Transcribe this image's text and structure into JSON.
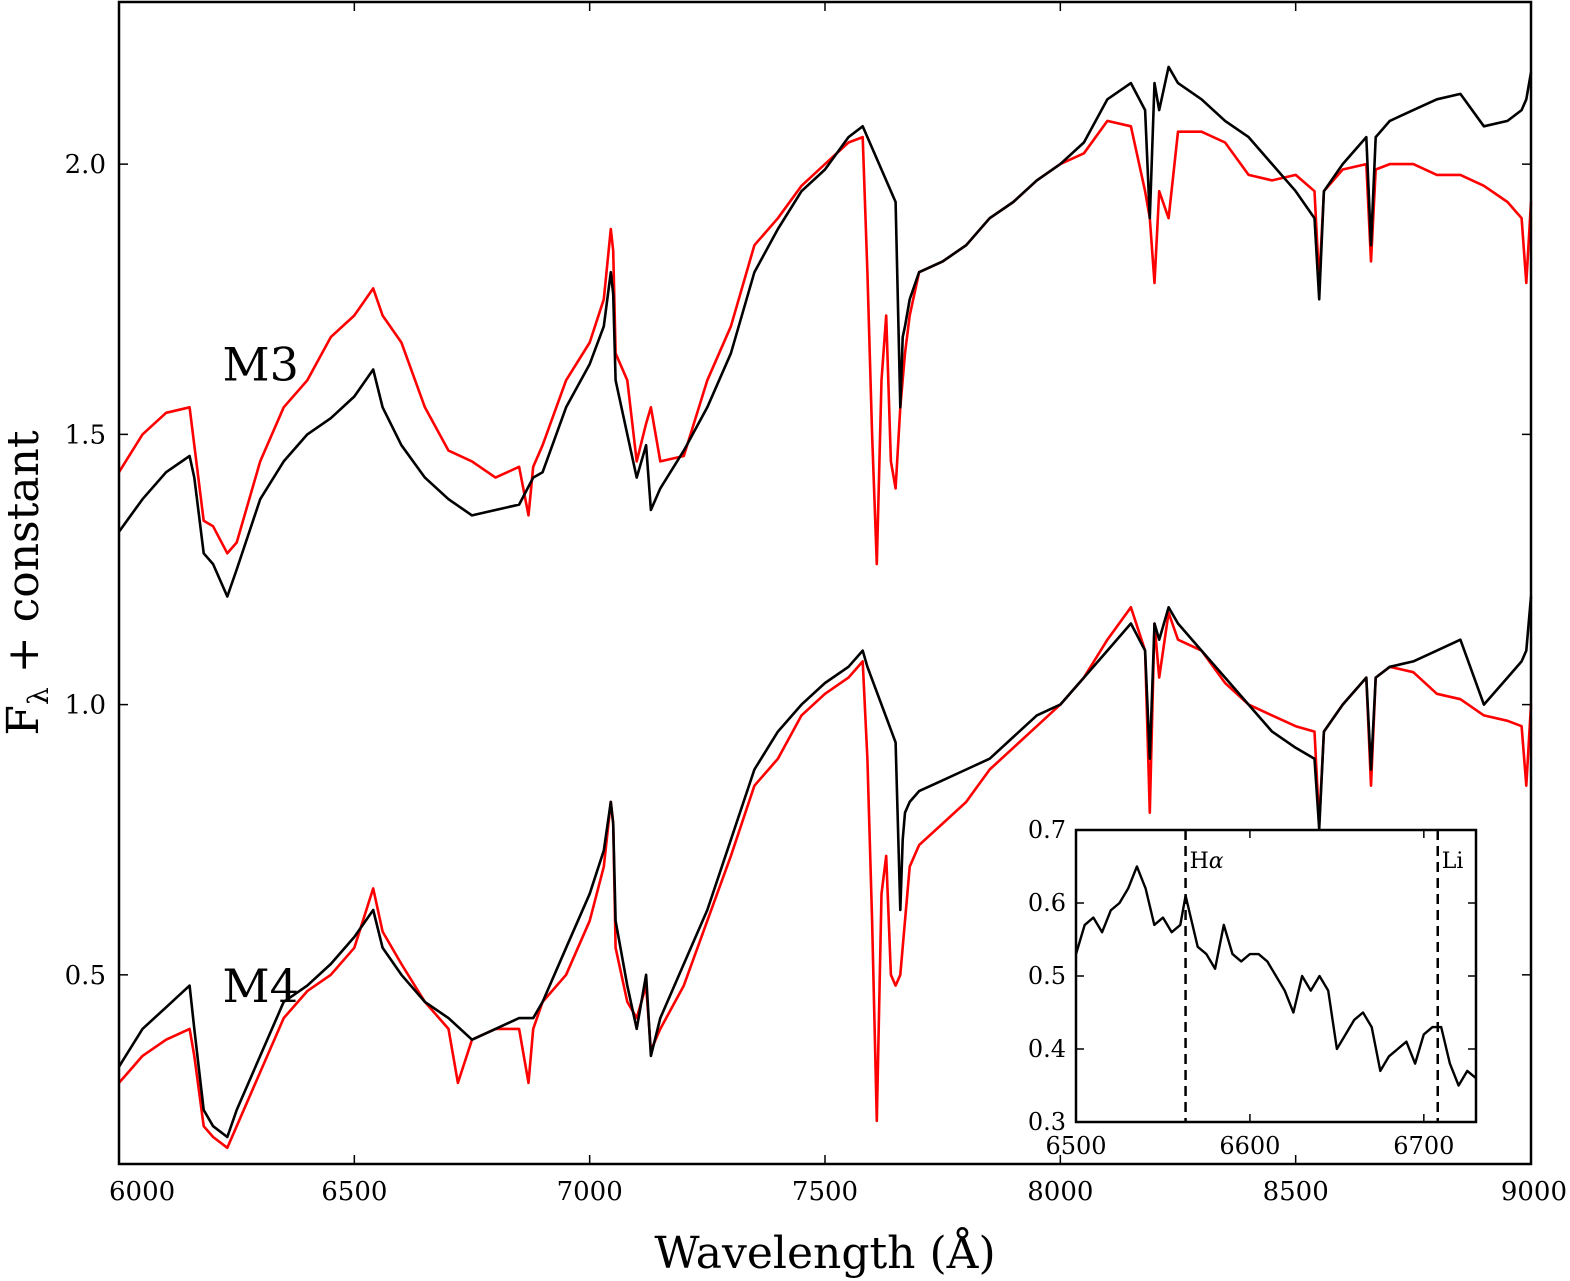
{
  "chart_data": [
    {
      "type": "line",
      "title": "",
      "xlabel": "Wavelength (Å)",
      "ylabel": "F_λ + constant",
      "ylabel_parts": {
        "main": "F",
        "sub": "λ",
        "rest": " + constant"
      },
      "xlim": [
        6000,
        9000
      ],
      "ylim": [
        0.15,
        2.3
      ],
      "xticks": [
        6000,
        6500,
        7000,
        7500,
        8000,
        8500,
        9000
      ],
      "yticks": [
        0.5,
        1.0,
        1.5,
        2.0
      ],
      "xtick_labels": [
        "6000",
        "6500",
        "7000",
        "7500",
        "8000",
        "8500",
        "9000"
      ],
      "ytick_labels": [
        "0.5",
        "1.0",
        "1.5",
        "2.0"
      ],
      "grid": false,
      "annotations": [
        {
          "text": "M3",
          "x": 6220,
          "y": 1.6,
          "color": "#ff0000"
        },
        {
          "text": "M4",
          "x": 6220,
          "y": 0.45,
          "color": "#ff0000"
        }
      ],
      "series": [
        {
          "color": "#ff0000",
          "group": "M3",
          "x": [
            6000,
            6050,
            6100,
            6150,
            6160,
            6180,
            6200,
            6230,
            6250,
            6300,
            6350,
            6400,
            6450,
            6500,
            6540,
            6560,
            6600,
            6650,
            6700,
            6750,
            6800,
            6850,
            6870,
            6880,
            6900,
            6950,
            7000,
            7030,
            7045,
            7050,
            7055,
            7080,
            7100,
            7120,
            7130,
            7150,
            7200,
            7250,
            7300,
            7350,
            7400,
            7450,
            7500,
            7550,
            7580,
            7590,
            7600,
            7610,
            7620,
            7630,
            7640,
            7650,
            7660,
            7670,
            7680,
            7700,
            7750,
            7800,
            7850,
            7900,
            7950,
            8000,
            8050,
            8100,
            8150,
            8180,
            8190,
            8200,
            8210,
            8230,
            8250,
            8300,
            8350,
            8400,
            8450,
            8500,
            8540,
            8550,
            8560,
            8600,
            8650,
            8660,
            8670,
            8700,
            8750,
            8800,
            8850,
            8900,
            8950,
            8980,
            8990,
            9000
          ],
          "y": [
            1.43,
            1.5,
            1.54,
            1.55,
            1.48,
            1.34,
            1.33,
            1.28,
            1.3,
            1.45,
            1.55,
            1.6,
            1.68,
            1.72,
            1.77,
            1.72,
            1.67,
            1.55,
            1.47,
            1.45,
            1.42,
            1.44,
            1.35,
            1.44,
            1.48,
            1.6,
            1.67,
            1.75,
            1.88,
            1.84,
            1.65,
            1.6,
            1.45,
            1.52,
            1.55,
            1.45,
            1.46,
            1.6,
            1.7,
            1.85,
            1.9,
            1.96,
            2.0,
            2.04,
            2.05,
            1.8,
            1.5,
            1.26,
            1.6,
            1.72,
            1.45,
            1.4,
            1.55,
            1.65,
            1.72,
            1.8,
            1.82,
            1.85,
            1.9,
            1.93,
            1.97,
            2.0,
            2.02,
            2.08,
            2.07,
            1.95,
            1.9,
            1.78,
            1.95,
            1.9,
            2.06,
            2.06,
            2.04,
            1.98,
            1.97,
            1.98,
            1.95,
            1.78,
            1.95,
            1.99,
            2.0,
            1.82,
            1.99,
            2.0,
            2.0,
            1.98,
            1.98,
            1.96,
            1.93,
            1.9,
            1.78,
            1.93
          ]
        },
        {
          "color": "#000000",
          "group": "M3",
          "x": [
            6000,
            6050,
            6100,
            6150,
            6160,
            6180,
            6200,
            6230,
            6250,
            6300,
            6350,
            6400,
            6450,
            6500,
            6540,
            6560,
            6600,
            6650,
            6700,
            6750,
            6800,
            6850,
            6880,
            6900,
            6950,
            7000,
            7030,
            7045,
            7050,
            7055,
            7080,
            7100,
            7120,
            7130,
            7150,
            7200,
            7250,
            7300,
            7350,
            7400,
            7450,
            7500,
            7550,
            7580,
            7590,
            7650,
            7660,
            7665,
            7670,
            7680,
            7700,
            7750,
            7800,
            7850,
            7900,
            7950,
            8000,
            8050,
            8100,
            8150,
            8180,
            8190,
            8200,
            8210,
            8230,
            8250,
            8300,
            8350,
            8400,
            8450,
            8500,
            8540,
            8550,
            8560,
            8600,
            8650,
            8660,
            8670,
            8700,
            8750,
            8800,
            8850,
            8900,
            8950,
            8980,
            8990,
            9000
          ],
          "y": [
            1.32,
            1.38,
            1.43,
            1.46,
            1.42,
            1.28,
            1.26,
            1.2,
            1.25,
            1.38,
            1.45,
            1.5,
            1.53,
            1.57,
            1.62,
            1.55,
            1.48,
            1.42,
            1.38,
            1.35,
            1.36,
            1.37,
            1.42,
            1.43,
            1.55,
            1.63,
            1.7,
            1.8,
            1.76,
            1.6,
            1.5,
            1.42,
            1.48,
            1.36,
            1.4,
            1.47,
            1.55,
            1.65,
            1.8,
            1.88,
            1.95,
            1.99,
            2.05,
            2.07,
            2.05,
            1.93,
            1.55,
            1.68,
            1.7,
            1.75,
            1.8,
            1.82,
            1.85,
            1.9,
            1.93,
            1.97,
            2.0,
            2.04,
            2.12,
            2.15,
            2.1,
            1.9,
            2.15,
            2.1,
            2.18,
            2.15,
            2.12,
            2.08,
            2.05,
            2.0,
            1.95,
            1.9,
            1.75,
            1.95,
            2.0,
            2.05,
            1.85,
            2.05,
            2.08,
            2.1,
            2.12,
            2.13,
            2.07,
            2.08,
            2.1,
            2.12,
            2.17
          ]
        },
        {
          "color": "#ff0000",
          "group": "M4",
          "x": [
            6000,
            6050,
            6100,
            6150,
            6160,
            6180,
            6200,
            6230,
            6250,
            6300,
            6350,
            6400,
            6450,
            6500,
            6540,
            6560,
            6600,
            6650,
            6700,
            6720,
            6750,
            6800,
            6850,
            6870,
            6880,
            6900,
            6950,
            7000,
            7030,
            7045,
            7050,
            7055,
            7080,
            7100,
            7120,
            7130,
            7150,
            7200,
            7250,
            7300,
            7350,
            7400,
            7450,
            7500,
            7550,
            7580,
            7590,
            7600,
            7610,
            7620,
            7630,
            7640,
            7650,
            7660,
            7670,
            7680,
            7700,
            7750,
            7800,
            7850,
            7900,
            7950,
            8000,
            8050,
            8100,
            8150,
            8180,
            8190,
            8200,
            8210,
            8230,
            8250,
            8300,
            8350,
            8400,
            8450,
            8500,
            8540,
            8550,
            8560,
            8600,
            8650,
            8660,
            8670,
            8700,
            8750,
            8800,
            8850,
            8900,
            8950,
            8980,
            8990,
            9000
          ],
          "y": [
            0.3,
            0.35,
            0.38,
            0.4,
            0.35,
            0.22,
            0.2,
            0.18,
            0.22,
            0.32,
            0.42,
            0.47,
            0.5,
            0.55,
            0.66,
            0.58,
            0.52,
            0.45,
            0.4,
            0.3,
            0.38,
            0.4,
            0.4,
            0.3,
            0.4,
            0.45,
            0.5,
            0.6,
            0.7,
            0.82,
            0.78,
            0.55,
            0.45,
            0.42,
            0.48,
            0.36,
            0.4,
            0.48,
            0.6,
            0.72,
            0.85,
            0.9,
            0.98,
            1.02,
            1.05,
            1.08,
            0.9,
            0.6,
            0.23,
            0.65,
            0.72,
            0.5,
            0.48,
            0.5,
            0.6,
            0.7,
            0.74,
            0.78,
            0.82,
            0.88,
            0.92,
            0.96,
            1.0,
            1.05,
            1.12,
            1.18,
            1.1,
            0.8,
            1.15,
            1.05,
            1.17,
            1.12,
            1.1,
            1.04,
            1.0,
            0.98,
            0.96,
            0.95,
            0.78,
            0.95,
            1.0,
            1.05,
            0.85,
            1.05,
            1.07,
            1.06,
            1.02,
            1.01,
            0.98,
            0.97,
            0.96,
            0.85,
            1.0
          ]
        },
        {
          "color": "#000000",
          "group": "M4",
          "x": [
            6000,
            6050,
            6100,
            6150,
            6160,
            6180,
            6200,
            6230,
            6250,
            6300,
            6350,
            6400,
            6450,
            6500,
            6540,
            6560,
            6600,
            6650,
            6700,
            6750,
            6800,
            6850,
            6880,
            6900,
            6950,
            7000,
            7030,
            7045,
            7050,
            7055,
            7080,
            7100,
            7120,
            7130,
            7150,
            7200,
            7250,
            7300,
            7350,
            7400,
            7450,
            7500,
            7550,
            7580,
            7590,
            7650,
            7660,
            7665,
            7670,
            7680,
            7700,
            7750,
            7800,
            7850,
            7900,
            7950,
            8000,
            8050,
            8100,
            8150,
            8180,
            8190,
            8200,
            8210,
            8230,
            8250,
            8300,
            8350,
            8400,
            8450,
            8500,
            8540,
            8550,
            8560,
            8600,
            8650,
            8660,
            8670,
            8700,
            8750,
            8800,
            8850,
            8900,
            8950,
            8980,
            8990,
            9000
          ],
          "y": [
            0.33,
            0.4,
            0.44,
            0.48,
            0.4,
            0.25,
            0.22,
            0.2,
            0.25,
            0.35,
            0.45,
            0.48,
            0.52,
            0.57,
            0.62,
            0.55,
            0.5,
            0.45,
            0.42,
            0.38,
            0.4,
            0.42,
            0.42,
            0.45,
            0.55,
            0.65,
            0.73,
            0.82,
            0.78,
            0.6,
            0.48,
            0.4,
            0.5,
            0.35,
            0.42,
            0.52,
            0.62,
            0.75,
            0.88,
            0.95,
            1.0,
            1.04,
            1.07,
            1.1,
            1.07,
            0.93,
            0.62,
            0.75,
            0.8,
            0.82,
            0.84,
            0.86,
            0.88,
            0.9,
            0.94,
            0.98,
            1.0,
            1.05,
            1.1,
            1.15,
            1.1,
            0.9,
            1.15,
            1.12,
            1.18,
            1.15,
            1.1,
            1.05,
            1.0,
            0.95,
            0.92,
            0.9,
            0.77,
            0.95,
            1.0,
            1.05,
            0.88,
            1.05,
            1.07,
            1.08,
            1.1,
            1.12,
            1.0,
            1.05,
            1.08,
            1.1,
            1.2
          ]
        }
      ]
    },
    {
      "type": "line",
      "title": "",
      "xlabel": "",
      "ylabel": "",
      "xlim": [
        6500,
        6730
      ],
      "ylim": [
        0.3,
        0.7
      ],
      "xticks": [
        6500,
        6600,
        6700
      ],
      "yticks": [
        0.3,
        0.4,
        0.5,
        0.6,
        0.7
      ],
      "xtick_labels": [
        "6500",
        "6600",
        "6700"
      ],
      "ytick_labels": [
        "0.3",
        "0.4",
        "0.5",
        "0.6",
        "0.7"
      ],
      "grid": false,
      "vlines": [
        {
          "x": 6563,
          "label": "Hα",
          "label_main": "H",
          "label_greek": "α"
        },
        {
          "x": 6708,
          "label": "Li",
          "label_main": "Li",
          "label_greek": ""
        }
      ],
      "series": [
        {
          "color": "#000000",
          "x": [
            6500,
            6505,
            6510,
            6515,
            6520,
            6525,
            6530,
            6535,
            6540,
            6545,
            6550,
            6555,
            6560,
            6563,
            6566,
            6570,
            6575,
            6580,
            6585,
            6590,
            6595,
            6600,
            6605,
            6610,
            6615,
            6620,
            6625,
            6630,
            6635,
            6640,
            6645,
            6650,
            6655,
            6660,
            6665,
            6670,
            6675,
            6680,
            6685,
            6690,
            6695,
            6700,
            6705,
            6710,
            6715,
            6720,
            6725,
            6730
          ],
          "y": [
            0.53,
            0.57,
            0.58,
            0.56,
            0.59,
            0.6,
            0.62,
            0.65,
            0.62,
            0.57,
            0.58,
            0.56,
            0.57,
            0.61,
            0.58,
            0.54,
            0.53,
            0.51,
            0.57,
            0.53,
            0.52,
            0.53,
            0.53,
            0.52,
            0.5,
            0.48,
            0.45,
            0.5,
            0.48,
            0.5,
            0.48,
            0.4,
            0.42,
            0.44,
            0.45,
            0.43,
            0.37,
            0.39,
            0.4,
            0.41,
            0.38,
            0.42,
            0.43,
            0.43,
            0.38,
            0.35,
            0.37,
            0.36
          ]
        }
      ]
    }
  ]
}
